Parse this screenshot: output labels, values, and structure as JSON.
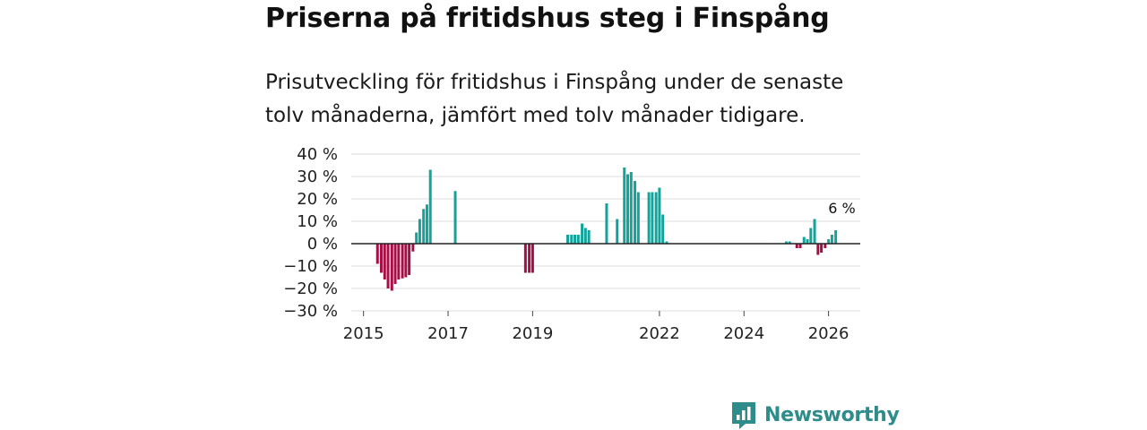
{
  "header": {
    "title": "Priserna på fritidshus steg i Finspång",
    "subtitle": "Prisutveckling för fritidshus i Finspång under de senaste tolv månaderna, jämfört med tolv månader tidigare."
  },
  "brand": {
    "name": "Newsworthy"
  },
  "colors": {
    "positive": "#14a39a",
    "negative": "#a50f45",
    "grid": "#dddddd",
    "zero": "#222222",
    "brand": "#2e8c8b"
  },
  "chart_data": {
    "type": "bar",
    "title": "Priserna på fritidshus steg i Finspång",
    "xlabel": "",
    "ylabel": "",
    "ylim": [
      -30,
      40
    ],
    "xlim": [
      2014.71,
      2026.75
    ],
    "yticks": [
      40,
      30,
      20,
      10,
      0,
      -10,
      -20,
      -30
    ],
    "ytick_labels": [
      "40 %",
      "30 %",
      "20 %",
      "10 %",
      "0 %",
      "−10 %",
      "−20 %",
      "−30 %"
    ],
    "xticks": [
      2015,
      2017,
      2019,
      2022,
      2024,
      2026
    ],
    "xtick_labels": [
      "2015",
      "2017",
      "2019",
      "2022",
      "2024",
      "2026"
    ],
    "annotation": {
      "text": "6 %",
      "x": 2026.12,
      "y": 6
    },
    "series": [
      {
        "name": "Prisutveckling",
        "x": [
          2015.33,
          2015.42,
          2015.5,
          2015.58,
          2015.67,
          2015.75,
          2015.83,
          2015.92,
          2016.0,
          2016.08,
          2016.17,
          2016.25,
          2016.33,
          2016.42,
          2016.5,
          2016.58,
          2016.67,
          2017.17,
          2018.83,
          2018.92,
          2019.0,
          2019.83,
          2019.92,
          2020.0,
          2020.08,
          2020.17,
          2020.25,
          2020.33,
          2020.42,
          2020.75,
          2021.0,
          2021.17,
          2021.25,
          2021.33,
          2021.42,
          2021.5,
          2021.58,
          2021.75,
          2021.83,
          2021.92,
          2022.0,
          2022.08,
          2022.17,
          2022.25,
          2025.0,
          2025.08,
          2025.25,
          2025.33,
          2025.42,
          2025.5,
          2025.58,
          2025.67,
          2025.75,
          2025.83,
          2025.92,
          2026.0,
          2026.08,
          2026.17
        ],
        "values": [
          -9,
          -13,
          -16,
          -20,
          -21,
          -18,
          -16,
          -15.5,
          -15,
          -14,
          -3.5,
          5,
          11,
          15.5,
          17.5,
          33,
          0,
          23.5,
          -13,
          -13,
          -13,
          4,
          4,
          4,
          4,
          9,
          7,
          6,
          0,
          18,
          11,
          34,
          31,
          32,
          28,
          23,
          0,
          23,
          23,
          23,
          25,
          13,
          1,
          0,
          1,
          1,
          -2,
          -2,
          3,
          2,
          7,
          11,
          -5,
          -4,
          -2,
          2,
          4,
          6
        ]
      }
    ]
  }
}
